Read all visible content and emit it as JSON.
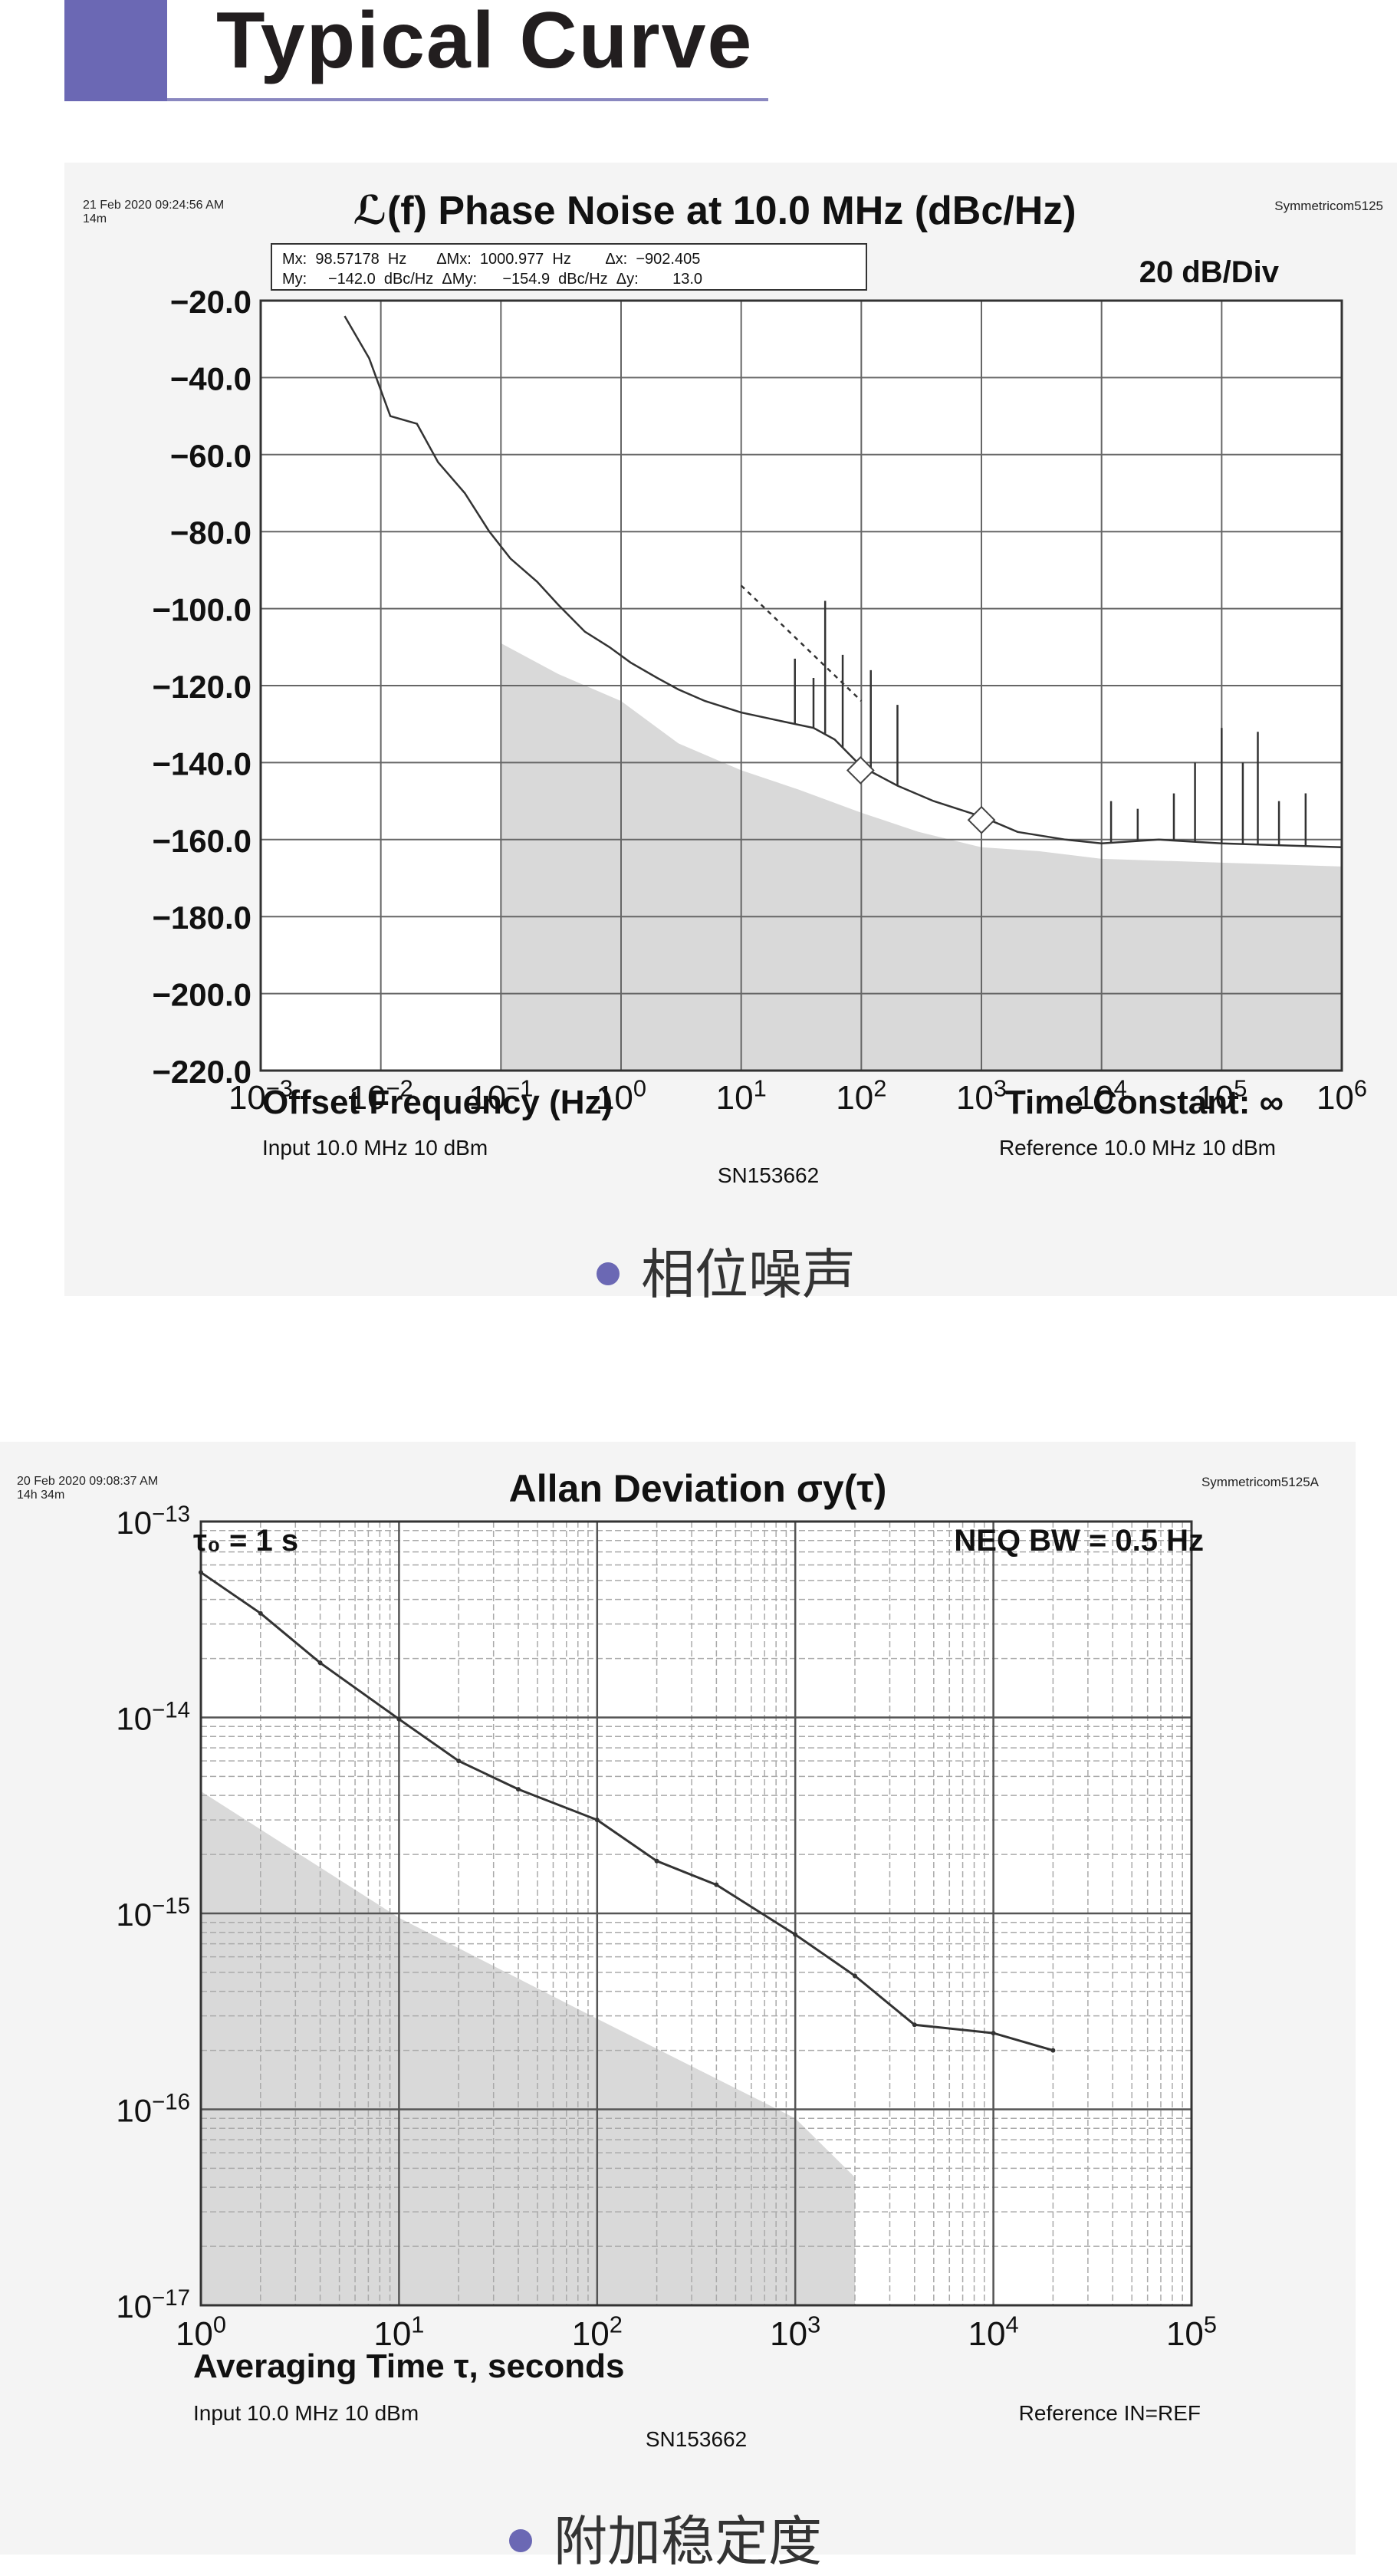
{
  "header": {
    "title": "Typical Curve"
  },
  "colors": {
    "accent": "#6b68b4",
    "noise_floor": "#d9d9d9",
    "trace": "#333333"
  },
  "phase_noise": {
    "timestamp": "21 Feb 2020 09:24:56 AM",
    "duration": "14m",
    "instrument": "Symmetricom5125",
    "marker_lines": [
      "Mx:  98.57178  Hz       ΔMx:  1000.977  Hz        Δx:  −902.405",
      "My:     −142.0  dBc/Hz  ΔMy:      −154.9  dBc/Hz  Δy:        13.0"
    ],
    "scale": "20 dB/Div",
    "time_constant": "Time Constant: ∞",
    "input_note": "Input 10.0 MHz 10 dBm",
    "reference_note": "Reference 10.0 MHz 10 dBm",
    "serial": "SN153662",
    "caption": "相位噪声"
  },
  "allan": {
    "timestamp": "20 Feb 2020 09:08:37 AM",
    "duration": "14h 34m",
    "instrument": "Symmetricom5125A",
    "tau0": "τ₀ = 1 s",
    "bandwidth": "NEQ BW = 0.5 Hz",
    "input_note": "Input 10.0 MHz 10 dBm",
    "reference_note": "Reference IN=REF",
    "serial": "SN153662",
    "caption": "附加稳定度"
  },
  "chart_data": [
    {
      "type": "line",
      "title": "ℒ(f) Phase Noise at 10.0 MHz (dBc/Hz)",
      "xlabel": "Offset Frequency (Hz)",
      "ylabel": "",
      "xscale": "log",
      "xlim": [
        0.001,
        1000000
      ],
      "ylim": [
        -220,
        -20
      ],
      "grid": true,
      "y_ticks": [
        "−20.0",
        "−40.0",
        "−60.0",
        "−80.0",
        "−100.0",
        "−120.0",
        "−140.0",
        "−160.0",
        "−180.0",
        "−200.0",
        "−220.0"
      ],
      "x_ticks": [
        {
          "base": "10",
          "exp": "−3"
        },
        {
          "base": "10",
          "exp": "−2"
        },
        {
          "base": "10",
          "exp": "−1"
        },
        {
          "base": "10",
          "exp": "0"
        },
        {
          "base": "10",
          "exp": "1"
        },
        {
          "base": "10",
          "exp": "2"
        },
        {
          "base": "10",
          "exp": "3"
        },
        {
          "base": "10",
          "exp": "4"
        },
        {
          "base": "10",
          "exp": "5"
        },
        {
          "base": "10",
          "exp": "6"
        }
      ],
      "series": [
        {
          "values": [
            {
              "x": 0.005,
              "y": -24
            },
            {
              "x": 0.008,
              "y": -35
            },
            {
              "x": 0.012,
              "y": -50
            },
            {
              "x": 0.02,
              "y": -52
            },
            {
              "x": 0.03,
              "y": -62
            },
            {
              "x": 0.05,
              "y": -70
            },
            {
              "x": 0.08,
              "y": -80
            },
            {
              "x": 0.12,
              "y": -87
            },
            {
              "x": 0.2,
              "y": -93
            },
            {
              "x": 0.3,
              "y": -99
            },
            {
              "x": 0.5,
              "y": -106
            },
            {
              "x": 0.8,
              "y": -110
            },
            {
              "x": 1.2,
              "y": -114
            },
            {
              "x": 2,
              "y": -118
            },
            {
              "x": 3,
              "y": -121
            },
            {
              "x": 5,
              "y": -124
            },
            {
              "x": 10,
              "y": -127
            },
            {
              "x": 20,
              "y": -129
            },
            {
              "x": 40,
              "y": -131
            },
            {
              "x": 60,
              "y": -134
            },
            {
              "x": 100,
              "y": -141
            },
            {
              "x": 200,
              "y": -146
            },
            {
              "x": 400,
              "y": -150
            },
            {
              "x": 1000,
              "y": -154
            },
            {
              "x": 2000,
              "y": -158
            },
            {
              "x": 5000,
              "y": -160
            },
            {
              "x": 10000,
              "y": -161
            },
            {
              "x": 30000,
              "y": -160
            },
            {
              "x": 100000,
              "y": -161
            },
            {
              "x": 1000000,
              "y": -162
            }
          ]
        },
        {
          "values": [
            {
              "x": 0.1,
              "y": -220
            },
            {
              "x": 0.1,
              "y": -109
            },
            {
              "x": 0.3,
              "y": -117
            },
            {
              "x": 1,
              "y": -124
            },
            {
              "x": 3,
              "y": -135
            },
            {
              "x": 10,
              "y": -142
            },
            {
              "x": 30,
              "y": -147
            },
            {
              "x": 100,
              "y": -153
            },
            {
              "x": 300,
              "y": -158
            },
            {
              "x": 1000,
              "y": -162
            },
            {
              "x": 3000,
              "y": -163
            },
            {
              "x": 10000,
              "y": -165
            },
            {
              "x": 100000,
              "y": -166
            },
            {
              "x": 1000000,
              "y": -167
            },
            {
              "x": 1000000,
              "y": -220
            }
          ]
        },
        {
          "values": [
            {
              "x": 10,
              "y": -94
            },
            {
              "x": 100,
              "y": -124
            }
          ]
        }
      ],
      "spurs": [
        {
          "x": 28,
          "y": -113
        },
        {
          "x": 40,
          "y": -118
        },
        {
          "x": 50,
          "y": -98
        },
        {
          "x": 70,
          "y": -112
        },
        {
          "x": 120,
          "y": -116
        },
        {
          "x": 200,
          "y": -125
        },
        {
          "x": 12000,
          "y": -150
        },
        {
          "x": 20000,
          "y": -152
        },
        {
          "x": 40000,
          "y": -148
        },
        {
          "x": 60000,
          "y": -140
        },
        {
          "x": 100000,
          "y": -131
        },
        {
          "x": 150000,
          "y": -140
        },
        {
          "x": 200000,
          "y": -132
        },
        {
          "x": 300000,
          "y": -150
        },
        {
          "x": 500000,
          "y": -148
        }
      ],
      "markers": [
        {
          "x": 98.57,
          "y": -142.0
        },
        {
          "x": 1000.977,
          "y": -154.9
        }
      ]
    },
    {
      "type": "line",
      "title": "Allan Deviation σy(τ)",
      "xlabel": "Averaging Time τ, seconds",
      "ylabel": "",
      "xscale": "log",
      "yscale": "log",
      "xlim": [
        1,
        100000
      ],
      "ylim": [
        1e-17,
        1e-13
      ],
      "grid": true,
      "x_ticks": [
        {
          "base": "10",
          "exp": "0"
        },
        {
          "base": "10",
          "exp": "1"
        },
        {
          "base": "10",
          "exp": "2"
        },
        {
          "base": "10",
          "exp": "3"
        },
        {
          "base": "10",
          "exp": "4"
        },
        {
          "base": "10",
          "exp": "5"
        }
      ],
      "y_ticks": [
        {
          "base": "10",
          "exp": "−13"
        },
        {
          "base": "10",
          "exp": "−14"
        },
        {
          "base": "10",
          "exp": "−15"
        },
        {
          "base": "10",
          "exp": "−16"
        },
        {
          "base": "10",
          "exp": "−17"
        }
      ],
      "series": [
        {
          "values": [
            {
              "x": 1,
              "y": 5.5e-14
            },
            {
              "x": 2,
              "y": 3.4e-14
            },
            {
              "x": 4,
              "y": 1.9e-14
            },
            {
              "x": 10,
              "y": 9.8e-15
            },
            {
              "x": 20,
              "y": 6e-15
            },
            {
              "x": 40,
              "y": 4.3e-15
            },
            {
              "x": 100,
              "y": 3e-15
            },
            {
              "x": 200,
              "y": 1.85e-15
            },
            {
              "x": 400,
              "y": 1.4e-15
            },
            {
              "x": 1000,
              "y": 7.8e-16
            },
            {
              "x": 2000,
              "y": 4.8e-16
            },
            {
              "x": 4000,
              "y": 2.7e-16
            },
            {
              "x": 10000,
              "y": 2.45e-16
            },
            {
              "x": 20000,
              "y": 2e-16
            }
          ]
        },
        {
          "values": [
            {
              "x": 1,
              "y": 1e-17
            },
            {
              "x": 1,
              "y": 4.2e-15
            },
            {
              "x": 10,
              "y": 9.5e-16
            },
            {
              "x": 100,
              "y": 2.9e-16
            },
            {
              "x": 1000,
              "y": 9e-17
            },
            {
              "x": 2000,
              "y": 4.5e-17
            },
            {
              "x": 2000,
              "y": 1e-17
            }
          ]
        }
      ]
    }
  ]
}
